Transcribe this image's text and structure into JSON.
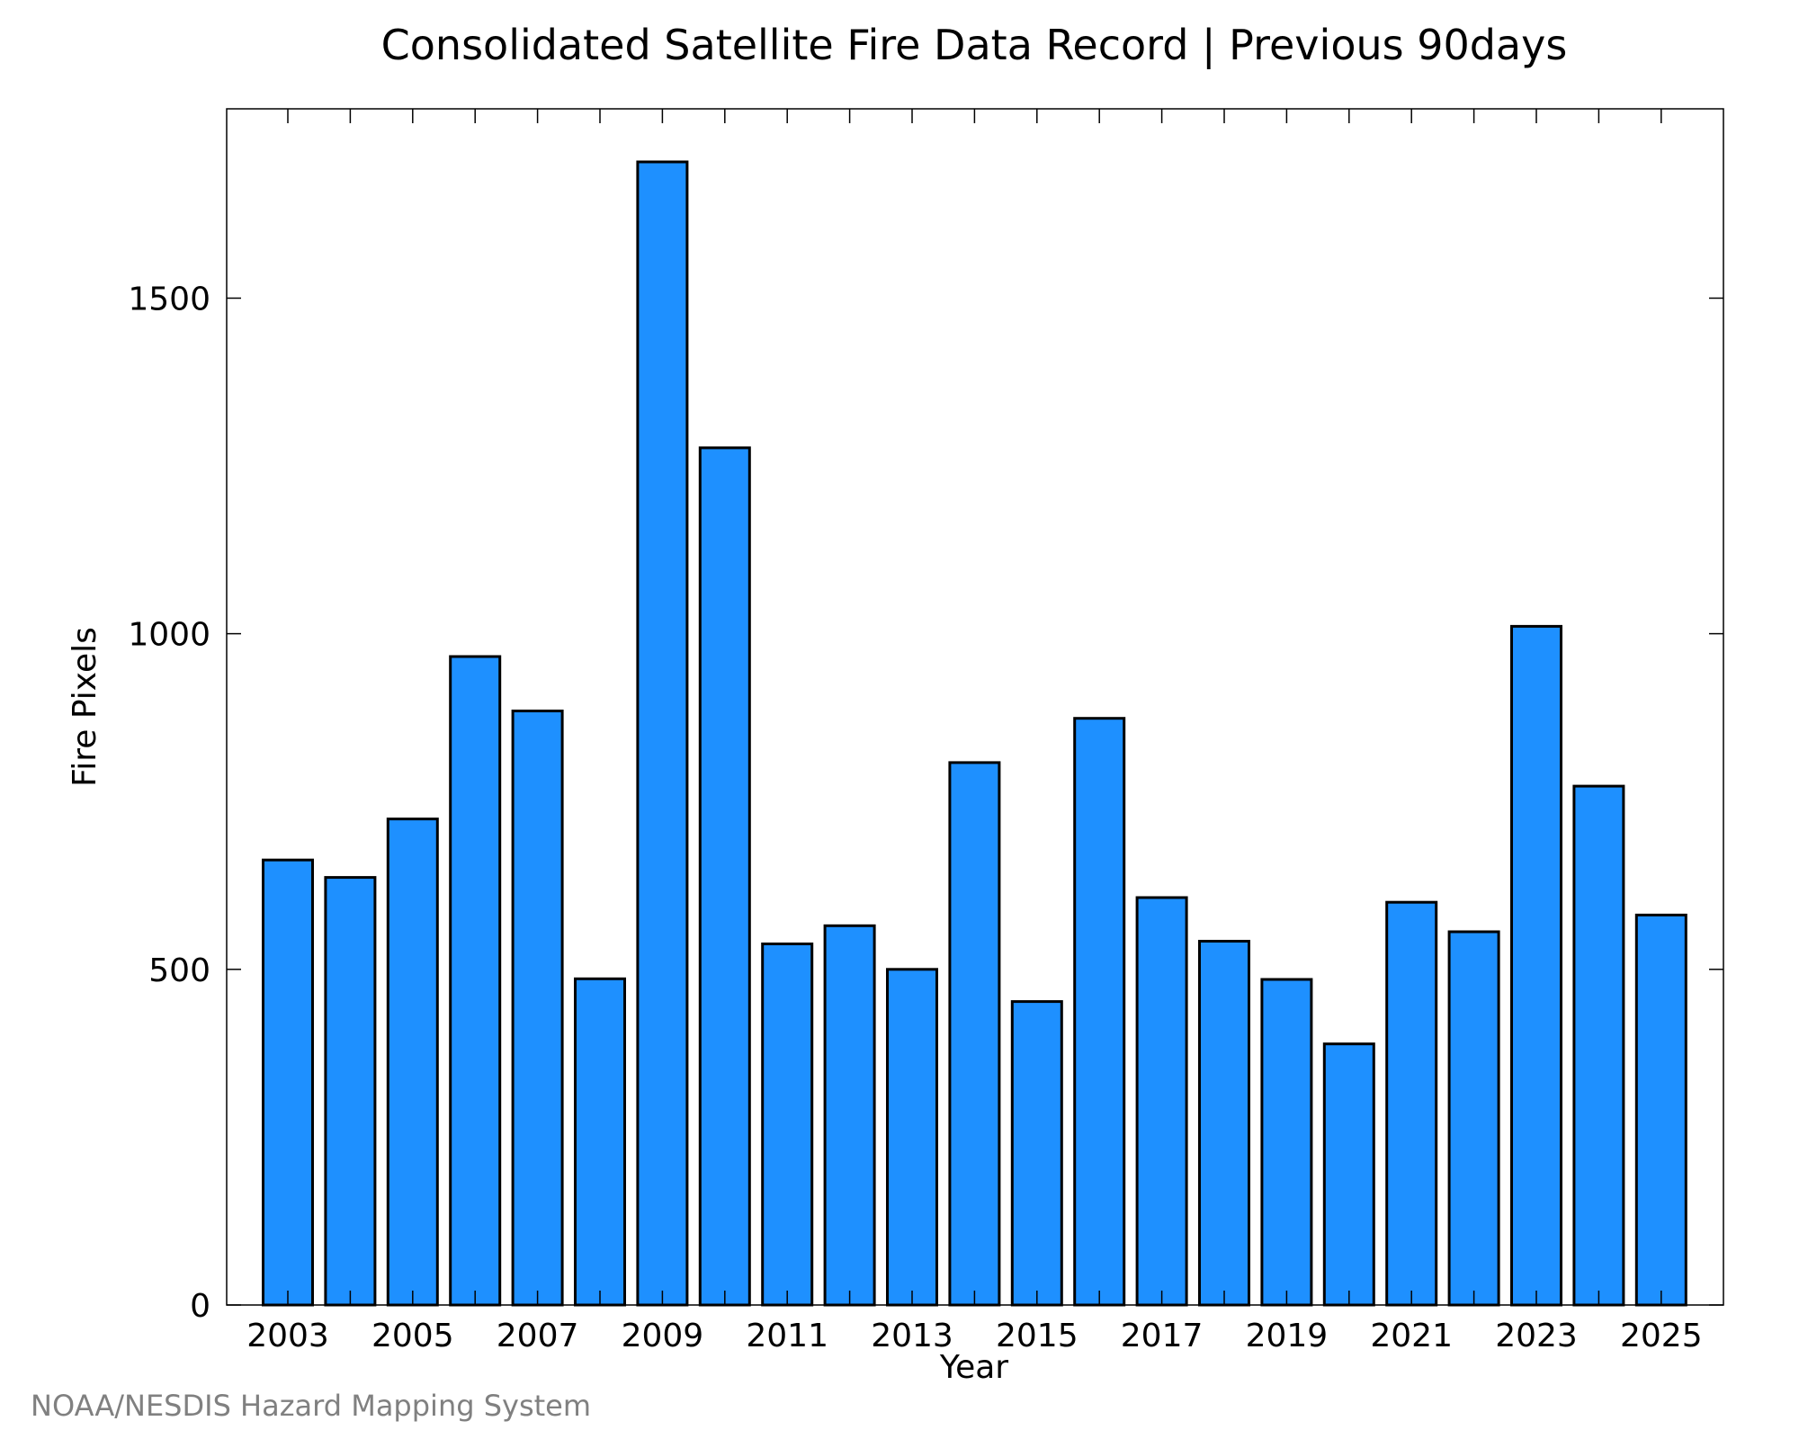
{
  "chart_data": {
    "type": "bar",
    "title": "Consolidated Satellite Fire Data Record | Previous 90days",
    "xlabel": "Year",
    "ylabel": "Fire Pixels",
    "categories": [
      "2003",
      "2004",
      "2005",
      "2006",
      "2007",
      "2008",
      "2009",
      "2010",
      "2011",
      "2012",
      "2013",
      "2014",
      "2015",
      "2016",
      "2017",
      "2018",
      "2019",
      "2020",
      "2021",
      "2022",
      "2023",
      "2024",
      "2025"
    ],
    "values": [
      663,
      637,
      724,
      966,
      885,
      486,
      1703,
      1277,
      538,
      565,
      500,
      808,
      452,
      874,
      607,
      542,
      485,
      389,
      600,
      556,
      1011,
      773,
      581
    ],
    "x_tick_labels": [
      "2003",
      "2005",
      "2007",
      "2009",
      "2011",
      "2013",
      "2015",
      "2017",
      "2019",
      "2021",
      "2023",
      "2025"
    ],
    "y_ticks": [
      0,
      500,
      1000,
      1500
    ],
    "ylim": [
      0,
      1782
    ],
    "grid": false,
    "bar_color": "#1e90ff",
    "bar_edge_color": "#000000",
    "credit": "NOAA/NESDIS Hazard Mapping System"
  }
}
